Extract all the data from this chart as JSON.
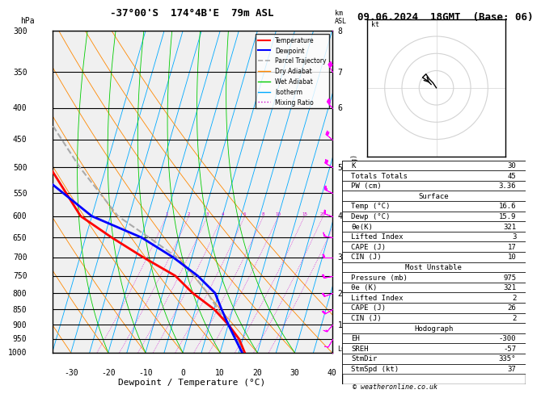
{
  "title_left": "-37°00'S  174°4B'E  79m ASL",
  "title_right": "09.06.2024  18GMT  (Base: 06)",
  "xlabel": "Dewpoint / Temperature (°C)",
  "ylabel_left": "hPa",
  "ylabel_right_km": "km\nASL",
  "ylabel_right_mix": "Mixing Ratio (g/kg)",
  "pressure_levels": [
    300,
    350,
    400,
    450,
    500,
    550,
    600,
    650,
    700,
    750,
    800,
    850,
    900,
    950,
    1000
  ],
  "pressure_labels": [
    300,
    350,
    400,
    450,
    500,
    550,
    600,
    650,
    700,
    750,
    800,
    850,
    900,
    950,
    1000
  ],
  "temp_xlim": [
    -35,
    40
  ],
  "temp_xticks": [
    -30,
    -20,
    -10,
    0,
    10,
    20,
    30,
    40
  ],
  "km_ticks": [
    1,
    2,
    3,
    4,
    5,
    6,
    7,
    8
  ],
  "km_pressures": [
    900,
    800,
    700,
    600,
    500,
    400,
    350,
    300
  ],
  "mixing_ratio_lines": [
    1,
    2,
    3,
    4,
    6,
    8,
    10,
    15,
    20,
    25
  ],
  "mixing_ratio_temps_at_1000": [
    -23,
    -17,
    -12,
    -8,
    -2,
    3,
    7,
    14,
    19,
    23
  ],
  "isotherm_temps": [
    -35,
    -30,
    -25,
    -20,
    -15,
    -10,
    -5,
    0,
    5,
    10,
    15,
    20,
    25,
    30,
    35,
    40
  ],
  "dry_adiabat_temps": [
    -40,
    -30,
    -20,
    -10,
    0,
    10,
    20,
    30,
    40,
    50
  ],
  "wet_adiabat_temps": [
    -20,
    -10,
    0,
    10,
    20,
    30
  ],
  "temp_profile": {
    "temps": [
      16.6,
      14.0,
      10.0,
      5.0,
      -2.0,
      -8.0,
      -18.0,
      -28.0,
      -38.0,
      -50.0,
      -58.0,
      -65.0
    ],
    "pressures": [
      1000,
      950,
      900,
      850,
      800,
      750,
      700,
      650,
      600,
      500,
      400,
      300
    ]
  },
  "dewp_profile": {
    "temps": [
      15.9,
      13.0,
      10.0,
      7.0,
      4.0,
      -2.0,
      -10.0,
      -20.0,
      -35.0,
      -55.0,
      -70.0,
      -80.0
    ],
    "pressures": [
      1000,
      950,
      900,
      850,
      800,
      750,
      700,
      650,
      600,
      500,
      400,
      300
    ]
  },
  "parcel_profile": {
    "temps": [
      16.6,
      13.5,
      10.0,
      6.0,
      2.0,
      -3.0,
      -9.0,
      -18.0,
      -28.0,
      -42.0,
      -57.0,
      -68.0
    ],
    "pressures": [
      1000,
      950,
      900,
      850,
      800,
      750,
      700,
      650,
      600,
      500,
      400,
      300
    ]
  },
  "lcl_pressure": 1000,
  "skew_factor": 25,
  "color_temp": "#ff0000",
  "color_dewp": "#0000ff",
  "color_parcel": "#aaaaaa",
  "color_dry_adiabat": "#ff8800",
  "color_wet_adiabat": "#00cc00",
  "color_isotherm": "#00aaff",
  "color_mixing": "#cc00cc",
  "color_bg": "#ffffff",
  "stats": {
    "K": 30,
    "Totals_Totals": 45,
    "PW_cm": 3.36,
    "Surface_Temp": 16.6,
    "Surface_Dewp": 15.9,
    "Surface_Theta_e": 321,
    "Surface_LI": 3,
    "Surface_CAPE": 17,
    "Surface_CIN": 10,
    "MU_Pressure": 975,
    "MU_Theta_e": 321,
    "MU_LI": 2,
    "MU_CAPE": 26,
    "MU_CIN": 2,
    "EH": -300,
    "SREH": -57,
    "StmDir": "335°",
    "StmSpd": 37
  },
  "wind_barbs": {
    "pressures": [
      1000,
      950,
      900,
      850,
      800,
      750,
      700,
      650,
      600,
      550,
      500,
      450,
      400,
      350,
      300
    ],
    "speeds": [
      10,
      12,
      15,
      18,
      20,
      22,
      18,
      15,
      20,
      25,
      28,
      30,
      35,
      40,
      45
    ],
    "directions": [
      200,
      210,
      220,
      240,
      250,
      260,
      270,
      280,
      290,
      295,
      300,
      310,
      320,
      330,
      340
    ]
  },
  "hodograph_points": {
    "u": [
      0,
      -2,
      -4,
      -6,
      -8,
      -5,
      -3
    ],
    "v": [
      0,
      3,
      5,
      8,
      6,
      4,
      2
    ]
  }
}
